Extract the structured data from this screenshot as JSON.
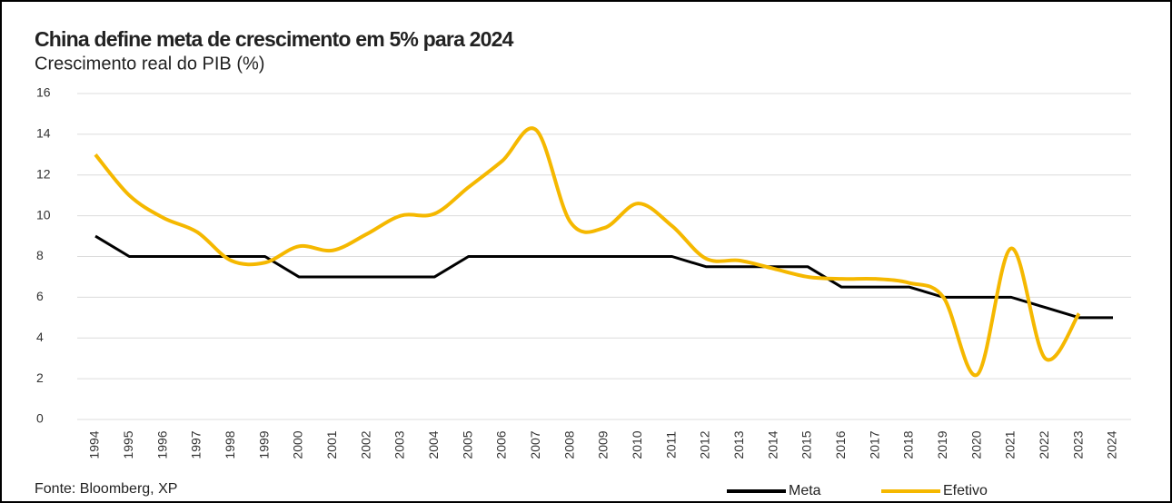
{
  "chart_data": {
    "type": "line",
    "title": "China define meta de crescimento em 5% para 2024",
    "subtitle": "Crescimento real do PIB (%)",
    "source": "Fonte: Bloomberg, XP",
    "categories": [
      "1994",
      "1995",
      "1996",
      "1997",
      "1998",
      "1999",
      "2000",
      "2001",
      "2002",
      "2003",
      "2004",
      "2005",
      "2006",
      "2007",
      "2008",
      "2009",
      "2010",
      "2011",
      "2012",
      "2013",
      "2014",
      "2015",
      "2016",
      "2017",
      "2018",
      "2019",
      "2020",
      "2021",
      "2022",
      "2023",
      "2024"
    ],
    "series": [
      {
        "name": "Meta",
        "color": "#000000",
        "smooth": false,
        "values": [
          9,
          8,
          8,
          8,
          8,
          8,
          7,
          7,
          7,
          7,
          7,
          8,
          8,
          8,
          8,
          8,
          8,
          8,
          7.5,
          7.5,
          7.5,
          7.5,
          6.5,
          6.5,
          6.5,
          6,
          6,
          6,
          5.5,
          5,
          5
        ]
      },
      {
        "name": "Efetivo",
        "color": "#f5b800",
        "smooth": true,
        "values": [
          13.0,
          11.0,
          9.9,
          9.2,
          7.8,
          7.7,
          8.5,
          8.3,
          9.1,
          10.0,
          10.1,
          11.4,
          12.7,
          14.2,
          9.7,
          9.4,
          10.6,
          9.5,
          7.9,
          7.8,
          7.4,
          7.0,
          6.9,
          6.9,
          6.7,
          6.0,
          2.2,
          8.4,
          3.0,
          5.2,
          null
        ]
      }
    ],
    "ylim": [
      0,
      16
    ],
    "yticks": [
      0,
      2,
      4,
      6,
      8,
      10,
      12,
      14,
      16
    ],
    "grid": true,
    "legend": "bottom"
  }
}
